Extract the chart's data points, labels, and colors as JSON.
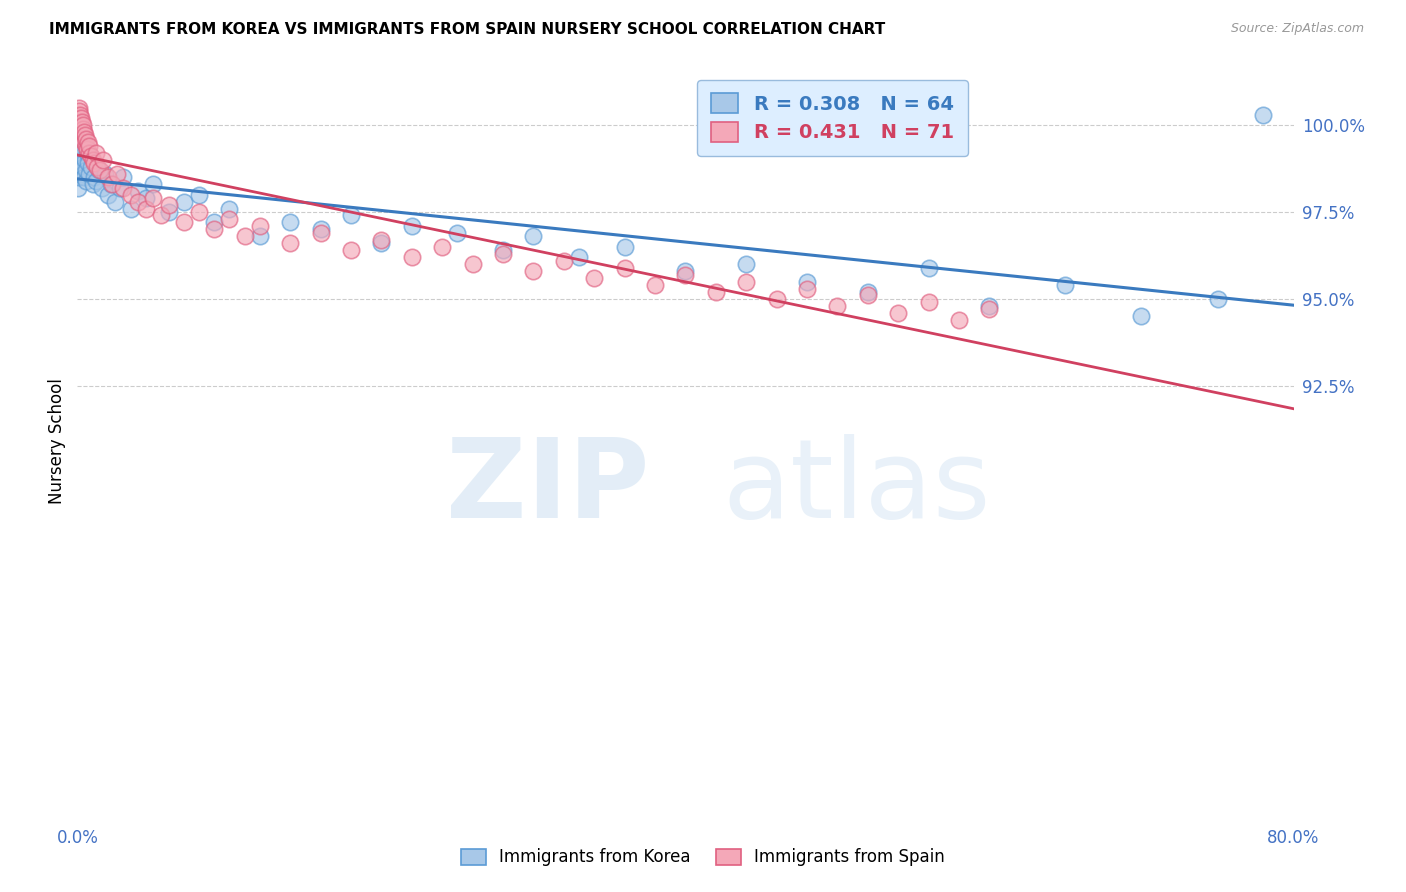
{
  "title": "IMMIGRANTS FROM KOREA VS IMMIGRANTS FROM SPAIN NURSERY SCHOOL CORRELATION CHART",
  "source": "Source: ZipAtlas.com",
  "ylabel": "Nursery School",
  "korea_R": 0.308,
  "korea_N": 64,
  "spain_R": 0.431,
  "spain_N": 71,
  "korea_color": "#a8c8e8",
  "korea_edge_color": "#5b9bd5",
  "spain_color": "#f4a8b8",
  "spain_edge_color": "#e06080",
  "korea_line_color": "#3a7abf",
  "spain_line_color": "#d04060",
  "legend_face_color": "#ddeeff",
  "legend_edge_color": "#99bbdd",
  "grid_color": "#cccccc",
  "tick_label_color": "#4472c4",
  "xlim": [
    0.0,
    80.0
  ],
  "ylim": [
    80.0,
    101.8
  ],
  "yticks": [
    92.5,
    95.0,
    97.5,
    100.0
  ],
  "yticklabels": [
    "92.5%",
    "95.0%",
    "97.5%",
    "100.0%"
  ],
  "watermark_zip_color": "#c8ddf0",
  "watermark_atlas_color": "#c8ddf0",
  "korea_x": [
    0.05,
    0.08,
    0.1,
    0.12,
    0.15,
    0.18,
    0.2,
    0.22,
    0.25,
    0.28,
    0.3,
    0.32,
    0.35,
    0.38,
    0.4,
    0.45,
    0.5,
    0.55,
    0.6,
    0.65,
    0.7,
    0.8,
    0.9,
    1.0,
    1.1,
    1.2,
    1.4,
    1.6,
    1.8,
    2.0,
    2.2,
    2.5,
    2.8,
    3.0,
    3.5,
    4.0,
    4.5,
    5.0,
    6.0,
    7.0,
    8.0,
    9.0,
    10.0,
    12.0,
    14.0,
    16.0,
    18.0,
    20.0,
    22.0,
    25.0,
    28.0,
    30.0,
    33.0,
    36.0,
    40.0,
    44.0,
    48.0,
    52.0,
    56.0,
    60.0,
    65.0,
    70.0,
    75.0,
    78.0
  ],
  "korea_y": [
    98.2,
    98.5,
    99.0,
    99.1,
    99.3,
    99.4,
    99.2,
    99.0,
    98.9,
    98.8,
    99.1,
    98.7,
    99.3,
    98.6,
    98.8,
    98.5,
    99.0,
    98.4,
    98.7,
    99.2,
    98.9,
    98.6,
    98.8,
    98.3,
    98.5,
    98.4,
    98.7,
    98.2,
    98.6,
    98.0,
    98.3,
    97.8,
    98.2,
    98.5,
    97.6,
    98.1,
    97.9,
    98.3,
    97.5,
    97.8,
    98.0,
    97.2,
    97.6,
    96.8,
    97.2,
    97.0,
    97.4,
    96.6,
    97.1,
    96.9,
    96.4,
    96.8,
    96.2,
    96.5,
    95.8,
    96.0,
    95.5,
    95.2,
    95.9,
    94.8,
    95.4,
    94.5,
    95.0,
    100.3
  ],
  "spain_x": [
    0.05,
    0.08,
    0.1,
    0.12,
    0.15,
    0.18,
    0.2,
    0.22,
    0.25,
    0.28,
    0.3,
    0.33,
    0.35,
    0.38,
    0.4,
    0.42,
    0.45,
    0.5,
    0.55,
    0.6,
    0.65,
    0.7,
    0.75,
    0.8,
    0.9,
    1.0,
    1.1,
    1.2,
    1.3,
    1.5,
    1.7,
    2.0,
    2.3,
    2.6,
    3.0,
    3.5,
    4.0,
    4.5,
    5.0,
    5.5,
    6.0,
    7.0,
    8.0,
    9.0,
    10.0,
    11.0,
    12.0,
    14.0,
    16.0,
    18.0,
    20.0,
    22.0,
    24.0,
    26.0,
    28.0,
    30.0,
    32.0,
    34.0,
    36.0,
    38.0,
    40.0,
    42.0,
    44.0,
    46.0,
    48.0,
    50.0,
    52.0,
    54.0,
    56.0,
    58.0,
    60.0
  ],
  "spain_y": [
    100.3,
    100.5,
    100.2,
    100.4,
    100.1,
    100.3,
    100.0,
    99.9,
    100.2,
    99.8,
    100.1,
    99.7,
    99.9,
    100.0,
    99.6,
    99.8,
    99.5,
    99.7,
    99.4,
    99.6,
    99.3,
    99.5,
    99.2,
    99.4,
    99.1,
    99.0,
    98.9,
    99.2,
    98.8,
    98.7,
    99.0,
    98.5,
    98.3,
    98.6,
    98.2,
    98.0,
    97.8,
    97.6,
    97.9,
    97.4,
    97.7,
    97.2,
    97.5,
    97.0,
    97.3,
    96.8,
    97.1,
    96.6,
    96.9,
    96.4,
    96.7,
    96.2,
    96.5,
    96.0,
    96.3,
    95.8,
    96.1,
    95.6,
    95.9,
    95.4,
    95.7,
    95.2,
    95.5,
    95.0,
    95.3,
    94.8,
    95.1,
    94.6,
    94.9,
    94.4,
    94.7
  ]
}
